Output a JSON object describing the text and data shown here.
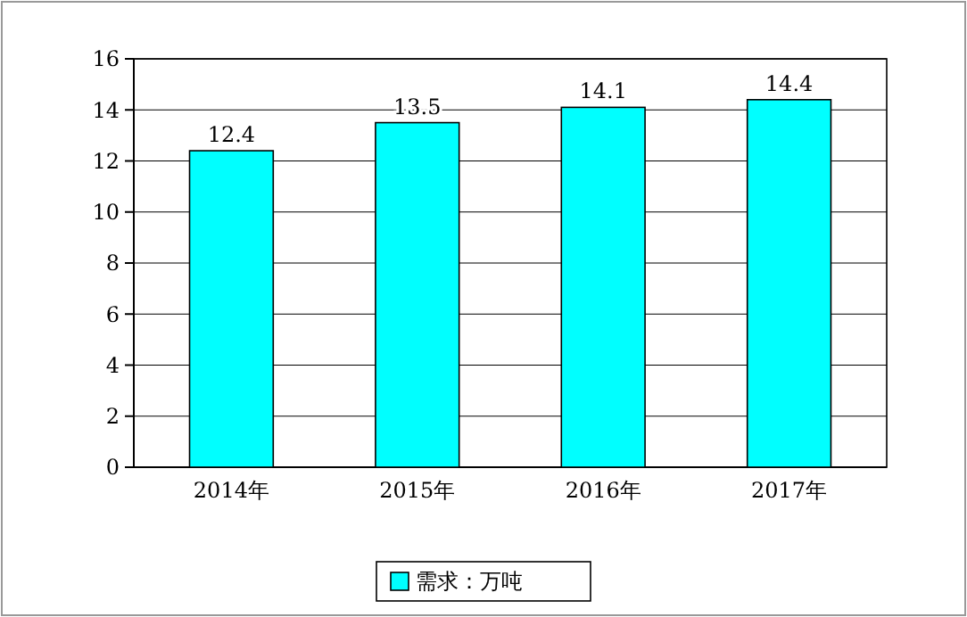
{
  "chart_data": {
    "type": "bar",
    "categories": [
      "2014年",
      "2015年",
      "2016年",
      "2017年"
    ],
    "series": [
      {
        "name": "需求：万吨",
        "color": "#00ffff",
        "values": [
          12.4,
          13.5,
          14.1,
          14.4
        ]
      }
    ],
    "ylim": [
      0,
      16
    ],
    "yticks": [
      0,
      2,
      4,
      6,
      8,
      10,
      12,
      14,
      16
    ],
    "grid": "y",
    "legend": "bottom",
    "data_labels": true
  }
}
